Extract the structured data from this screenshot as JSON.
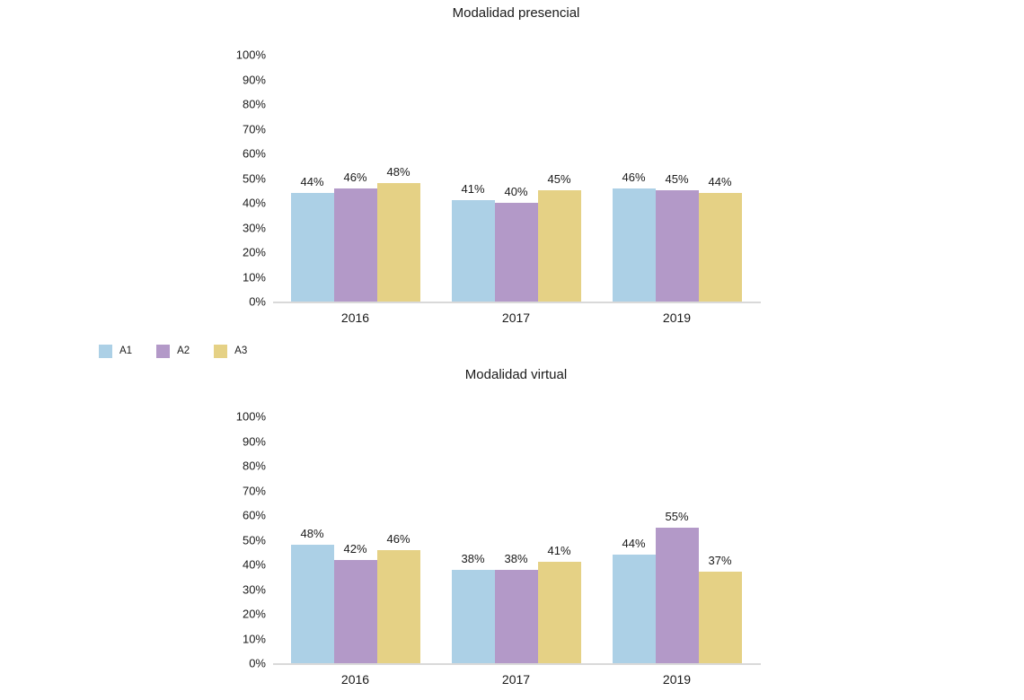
{
  "page": {
    "background": "#ffffff",
    "text_color": "#1a1a1a",
    "axis_line_color": "#d9d9d9"
  },
  "legend": {
    "position": "bottom-left-of-first-chart",
    "items": [
      {
        "label": "A1",
        "color": "#acd0e6"
      },
      {
        "label": "A2",
        "color": "#b399c8"
      },
      {
        "label": "A3",
        "color": "#e5d185"
      }
    ]
  },
  "chart_data": [
    {
      "type": "bar",
      "title": "Modalidad presencial",
      "categories": [
        "2016",
        "2017",
        "2019"
      ],
      "series": [
        {
          "name": "A1",
          "color": "#acd0e6",
          "values": [
            44,
            41,
            46
          ]
        },
        {
          "name": "A2",
          "color": "#b399c8",
          "values": [
            46,
            40,
            45
          ]
        },
        {
          "name": "A3",
          "color": "#e5d185",
          "values": [
            48,
            45,
            44
          ]
        }
      ],
      "xlabel": "",
      "ylabel": "",
      "ylim": [
        0,
        100
      ],
      "yticks": [
        "100%",
        "90%",
        "80%",
        "70%",
        "60%",
        "50%",
        "40%",
        "30%",
        "20%",
        "10%",
        "0%"
      ],
      "grid": false,
      "data_labels": true,
      "data_label_suffix": "%"
    },
    {
      "type": "bar",
      "title": "Modalidad virtual",
      "categories": [
        "2016",
        "2017",
        "2019"
      ],
      "series": [
        {
          "name": "A1",
          "color": "#acd0e6",
          "values": [
            48,
            38,
            44
          ]
        },
        {
          "name": "A2",
          "color": "#b399c8",
          "values": [
            42,
            38,
            55
          ]
        },
        {
          "name": "A3",
          "color": "#e5d185",
          "values": [
            46,
            41,
            37
          ]
        }
      ],
      "xlabel": "",
      "ylabel": "",
      "ylim": [
        0,
        100
      ],
      "yticks": [
        "100%",
        "90%",
        "80%",
        "70%",
        "60%",
        "50%",
        "40%",
        "30%",
        "20%",
        "10%",
        "0%"
      ],
      "grid": false,
      "data_labels": true,
      "data_label_suffix": "%"
    }
  ]
}
